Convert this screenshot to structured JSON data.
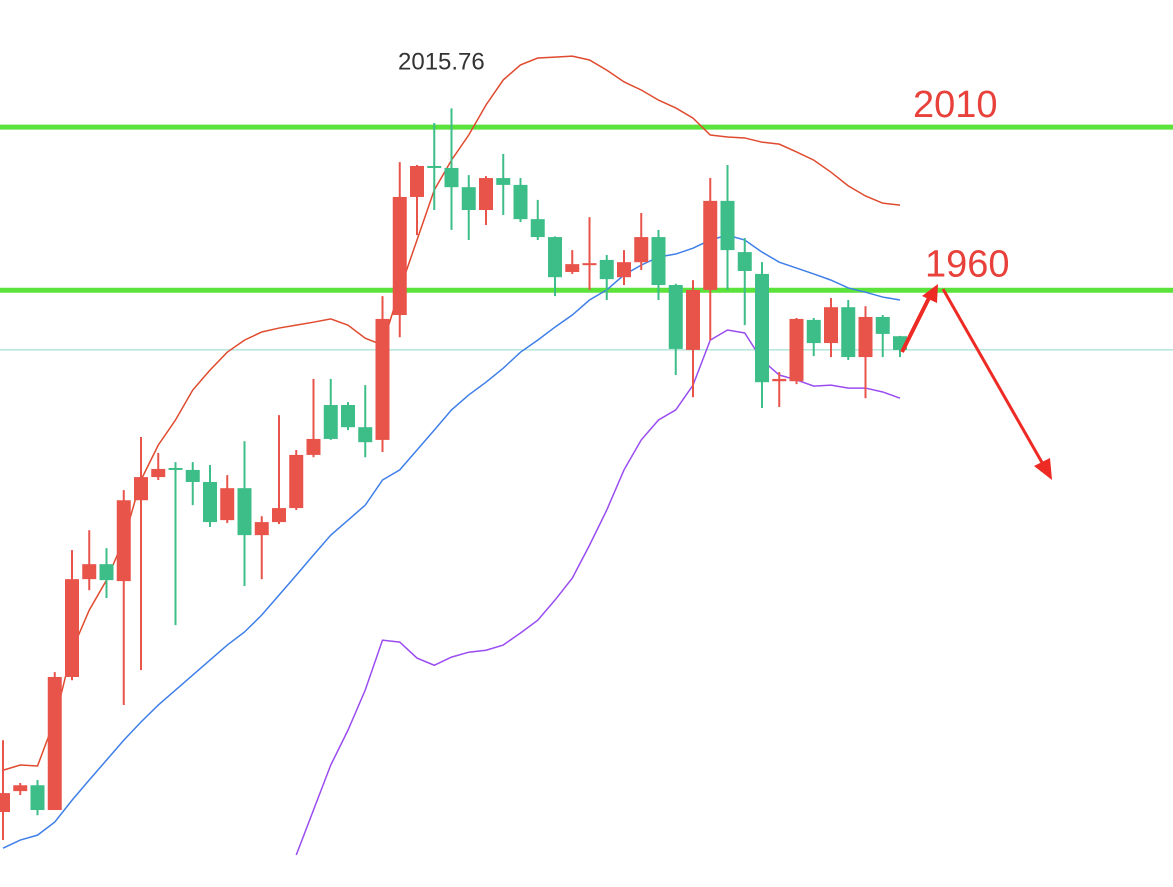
{
  "chart_data": {
    "type": "candlestick",
    "ylim": [
      1777,
      2049
    ],
    "up_color": "#e8544a",
    "down_color": "#3dbd87",
    "open": [
      1800.0,
      1806.4,
      1808.2,
      1800.6,
      1841.4,
      1871.4,
      1876.0,
      1870.8,
      1895.6,
      1902.7,
      1905.5,
      1904.9,
      1901.2,
      1889.5,
      1899.3,
      1884.9,
      1888.9,
      1893.2,
      1909.5,
      1924.8,
      1924.8,
      1918.0,
      1914.1,
      1952.4,
      1988.6,
      1998.1,
      1997.5,
      1991.6,
      1984.6,
      1994.4,
      1992.3,
      1981.8,
      1976.3,
      1965.6,
      1967.7,
      1969.3,
      1964.0,
      1968.6,
      1976.3,
      1961.6,
      1941.7,
      1960.1,
      1987.4,
      1971.7,
      1965.0,
      1932.1,
      1932.1,
      1950.9,
      1943.8,
      1954.8,
      1939.5,
      1951.8,
      1945.9
    ],
    "high": [
      1822.0,
      1808.9,
      1809.8,
      1842.9,
      1880.3,
      1886.4,
      1880.9,
      1898.7,
      1915.0,
      1910.1,
      1907.3,
      1907.3,
      1906.4,
      1903.3,
      1913.7,
      1890.7,
      1921.7,
      1911.0,
      1932.8,
      1932.8,
      1925.7,
      1930.9,
      1958.2,
      1999.3,
      1998.4,
      2011.3,
      2015.76,
      1995.3,
      1995.0,
      2001.8,
      1994.4,
      1987.7,
      1976.5,
      1972.3,
      1982.4,
      1970.8,
      1972.3,
      1983.7,
      1978.5,
      1962.0,
      1963.1,
      1994.4,
      1998.4,
      1976.0,
      1968.6,
      1934.9,
      1951.5,
      1951.5,
      1957.6,
      1957.0,
      1955.1,
      1952.4,
      1946.0
    ],
    "low": [
      1791.4,
      1805.2,
      1799.0,
      1800.6,
      1840.4,
      1868.0,
      1865.6,
      1832.8,
      1843.5,
      1901.8,
      1857.3,
      1894.1,
      1887.4,
      1888.6,
      1869.3,
      1871.4,
      1888.3,
      1892.6,
      1908.8,
      1914.1,
      1917.1,
      1908.8,
      1910.4,
      1945.6,
      1976.9,
      1984.6,
      1978.5,
      1975.4,
      1980.0,
      1983.1,
      1980.9,
      1975.4,
      1958.2,
      1965.0,
      1960.1,
      1957.0,
      1961.6,
      1966.2,
      1957.0,
      1934.0,
      1927.2,
      1944.7,
      1960.1,
      1949.3,
      1923.9,
      1924.2,
      1931.2,
      1939.8,
      1939.5,
      1938.6,
      1926.9,
      1939.5,
      1939.5
    ],
    "close": [
      1805.8,
      1808.2,
      1800.6,
      1841.4,
      1871.4,
      1876.0,
      1871.1,
      1895.6,
      1902.7,
      1905.2,
      1904.9,
      1901.2,
      1888.9,
      1899.3,
      1884.9,
      1888.9,
      1893.2,
      1909.5,
      1914.4,
      1914.4,
      1918.0,
      1913.4,
      1951.2,
      1988.6,
      1998.1,
      1997.5,
      1991.6,
      1984.6,
      1994.4,
      1992.3,
      1981.8,
      1976.3,
      1964.0,
      1968.0,
      1968.3,
      1963.4,
      1968.6,
      1976.3,
      1961.6,
      1942.0,
      1960.1,
      1987.4,
      1972.3,
      1965.9,
      1931.8,
      1932.8,
      1951.2,
      1943.8,
      1954.8,
      1939.5,
      1951.8,
      1946.6,
      1941.7
    ],
    "lines": [
      {
        "color": "#e04a2e",
        "values": [
          1812.8,
          1814.4,
          1814.1,
          1828.2,
          1849.6,
          1861.9,
          1871.1,
          1883.4,
          1901.8,
          1912.5,
          1920.2,
          1929.4,
          1935.5,
          1941.0,
          1944.7,
          1947.2,
          1948.4,
          1949.3,
          1950.2,
          1951.2,
          1949.3,
          1945.3,
          1943.2,
          1960.1,
          1975.4,
          1990.7,
          1999.9,
          2007.6,
          2016.8,
          2024.5,
          2029.1,
          2031.2,
          2031.5,
          2031.8,
          2030.6,
          2027.5,
          2023.9,
          2021.4,
          2018.3,
          2015.9,
          2012.8,
          2007.6,
          2007.0,
          2006.7,
          2005.4,
          2004.8,
          2002.4,
          1999.9,
          1996.2,
          1992.0,
          1988.9,
          1986.7,
          1986.1
        ]
      },
      {
        "color": "#3f7fe8",
        "values": [
          1788.9,
          1791.4,
          1792.9,
          1796.9,
          1803.6,
          1809.8,
          1815.9,
          1822.0,
          1827.6,
          1832.8,
          1837.4,
          1842.0,
          1846.6,
          1851.2,
          1855.2,
          1860.4,
          1866.5,
          1872.6,
          1878.8,
          1884.9,
          1889.5,
          1894.1,
          1901.8,
          1904.9,
          1911.0,
          1917.1,
          1923.3,
          1927.9,
          1931.8,
          1936.1,
          1941.0,
          1944.7,
          1948.7,
          1952.4,
          1957.0,
          1960.1,
          1964.7,
          1967.7,
          1970.2,
          1971.1,
          1972.9,
          1975.4,
          1976.9,
          1975.4,
          1971.7,
          1968.6,
          1966.8,
          1965.0,
          1963.1,
          1960.7,
          1959.4,
          1957.9,
          1957.0
        ]
      },
      {
        "color": "#9a4cf0",
        "values": [
          null,
          null,
          null,
          null,
          null,
          null,
          null,
          null,
          null,
          null,
          null,
          null,
          null,
          null,
          null,
          null,
          null,
          1786.8,
          1800.6,
          1814.4,
          1825.1,
          1837.4,
          1852.7,
          1852.1,
          1847.2,
          1845.0,
          1847.5,
          1849.0,
          1849.6,
          1851.2,
          1854.9,
          1858.8,
          1865.0,
          1871.7,
          1881.8,
          1892.6,
          1904.9,
          1914.1,
          1920.2,
          1923.3,
          1930.9,
          1944.7,
          1947.8,
          1946.9,
          1938.6,
          1934.0,
          1932.5,
          1930.6,
          1930.9,
          1930.0,
          1930.0,
          1928.8,
          1926.9
        ]
      }
    ],
    "hlines": [
      {
        "value": 2010,
        "color": "#5be33c",
        "width": 5
      },
      {
        "value": 1960,
        "color": "#5be33c",
        "width": 5
      },
      {
        "value": 1941.7,
        "color": "#8fd9c9",
        "width": 1
      }
    ]
  }
}
